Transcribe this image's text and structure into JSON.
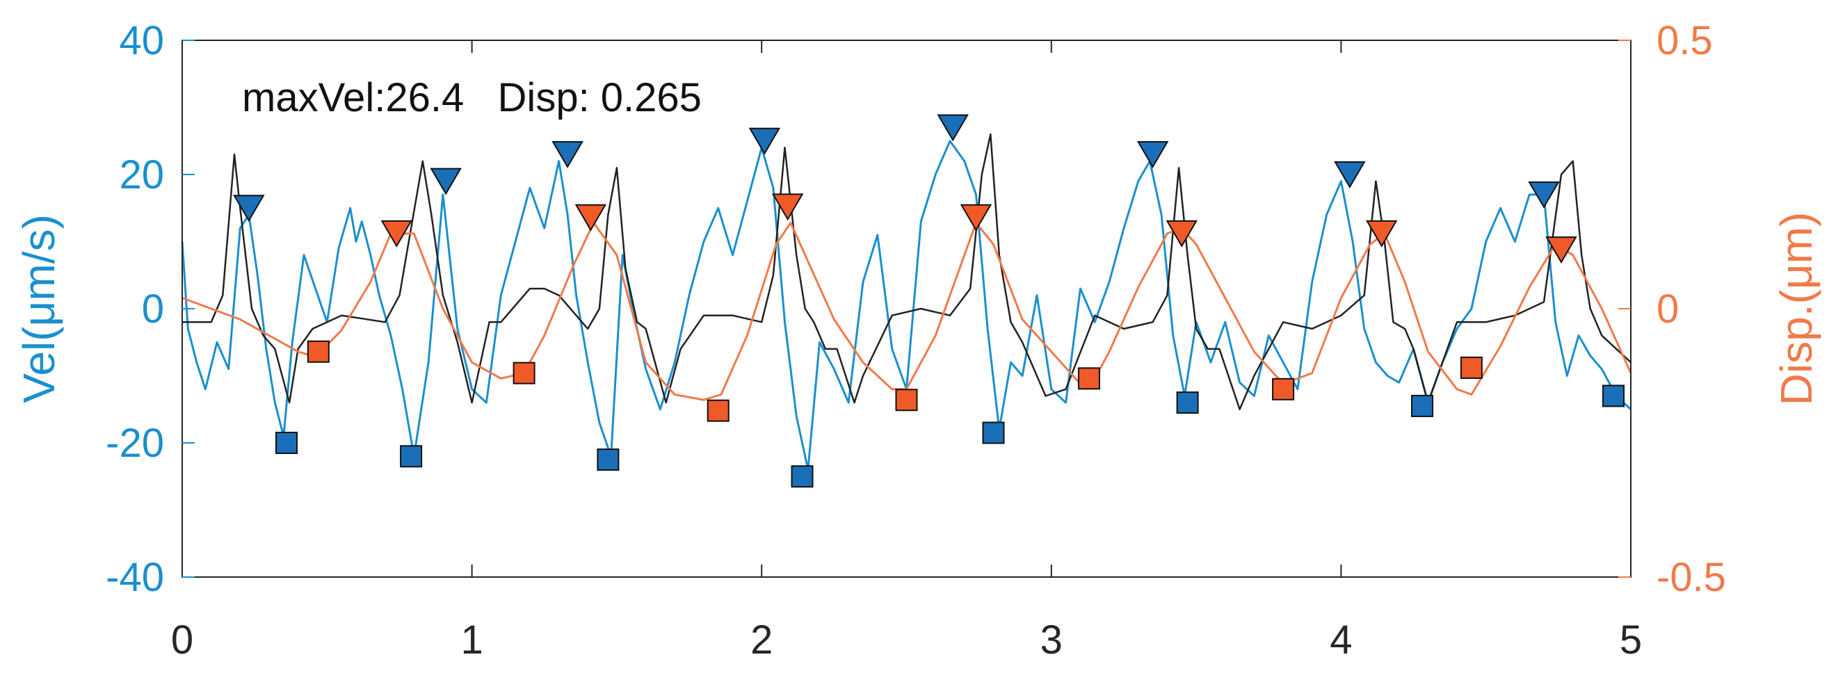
{
  "chart_data": {
    "type": "line",
    "title": "",
    "annotation": "maxVel:26.4   Disp: 0.265",
    "xlabel": "",
    "xlim": [
      0,
      5
    ],
    "x_ticks": [
      "0",
      "1",
      "2",
      "3",
      "4",
      "5"
    ],
    "y_left": {
      "label": "Vel(μm/s)",
      "color": "#1a8fcf",
      "ylim": [
        -40,
        40
      ],
      "ticks": [
        "40",
        "20",
        "0",
        "-20",
        "-40"
      ]
    },
    "y_right": {
      "label": "Disp.(μm)",
      "color": "#f07a4a",
      "ylim": [
        -0.5,
        0.5
      ],
      "ticks": [
        "0.5",
        "0",
        "-0.5"
      ]
    },
    "grid": false,
    "series": [
      {
        "axis": "left",
        "color": "#1a8fcf",
        "x": [
          0,
          0.02,
          0.05,
          0.08,
          0.12,
          0.16,
          0.2,
          0.23,
          0.26,
          0.29,
          0.32,
          0.35,
          0.38,
          0.42,
          0.46,
          0.5,
          0.54,
          0.58,
          0.6,
          0.62,
          0.65,
          0.68,
          0.72,
          0.76,
          0.8,
          0.85,
          0.9,
          0.95,
          1.0,
          1.05,
          1.1,
          1.15,
          1.2,
          1.25,
          1.3,
          1.33,
          1.36,
          1.4,
          1.44,
          1.48,
          1.52,
          1.56,
          1.6,
          1.65,
          1.7,
          1.75,
          1.8,
          1.85,
          1.9,
          1.95,
          2.0,
          2.04,
          2.08,
          2.12,
          2.16,
          2.2,
          2.25,
          2.3,
          2.35,
          2.4,
          2.45,
          2.5,
          2.55,
          2.6,
          2.65,
          2.7,
          2.74,
          2.78,
          2.82,
          2.86,
          2.9,
          2.95,
          3.0,
          3.05,
          3.1,
          3.15,
          3.2,
          3.25,
          3.3,
          3.34,
          3.38,
          3.42,
          3.46,
          3.5,
          3.55,
          3.6,
          3.65,
          3.7,
          3.75,
          3.8,
          3.85,
          3.9,
          3.95,
          4.0,
          4.04,
          4.08,
          4.12,
          4.16,
          4.2,
          4.25,
          4.3,
          4.35,
          4.4,
          4.45,
          4.5,
          4.55,
          4.6,
          4.65,
          4.7,
          4.74,
          4.78,
          4.82,
          4.86,
          4.9,
          4.95,
          5.0
        ],
        "values": [
          10,
          -3,
          -8,
          -12,
          -5,
          -9,
          12,
          14,
          5,
          -6,
          -14,
          -19,
          -5,
          8,
          3,
          -2,
          9,
          15,
          10,
          13,
          8,
          2,
          -4,
          -12,
          -22,
          -8,
          17,
          -3,
          -12,
          -14,
          2,
          10,
          18,
          12,
          22,
          14,
          2,
          -8,
          -17,
          -22,
          8,
          -1,
          -9,
          -15,
          -8,
          2,
          10,
          15,
          8,
          16,
          24,
          18,
          -2,
          -16,
          -24,
          -5,
          -9,
          -14,
          4,
          11,
          -6,
          -12,
          13,
          20,
          25,
          22,
          17,
          -3,
          -18,
          -8,
          -10,
          2,
          -12,
          -14,
          3,
          -2,
          4,
          12,
          19,
          22,
          14,
          -4,
          -13,
          -2,
          -8,
          -2,
          -11,
          -13,
          -4,
          -8,
          -12,
          4,
          14,
          19,
          10,
          -3,
          -8,
          -10,
          -11,
          -6,
          -14,
          -8,
          -3,
          0,
          10,
          15,
          10,
          17,
          17,
          -2,
          -10,
          -4,
          -7,
          -9,
          -13,
          -15
        ]
      },
      {
        "axis": "left",
        "color": "#222222",
        "x": [
          0,
          0.1,
          0.14,
          0.18,
          0.2,
          0.24,
          0.28,
          0.32,
          0.37,
          0.4,
          0.45,
          0.55,
          0.7,
          0.75,
          0.79,
          0.83,
          0.86,
          0.9,
          0.95,
          1.0,
          1.03,
          1.06,
          1.1,
          1.2,
          1.25,
          1.3,
          1.4,
          1.44,
          1.47,
          1.5,
          1.53,
          1.57,
          1.6,
          1.67,
          1.72,
          1.8,
          1.9,
          2.0,
          2.04,
          2.08,
          2.12,
          2.15,
          2.18,
          2.22,
          2.26,
          2.32,
          2.35,
          2.45,
          2.55,
          2.65,
          2.72,
          2.76,
          2.79,
          2.82,
          2.86,
          2.9,
          2.98,
          3.05,
          3.15,
          3.25,
          3.35,
          3.4,
          3.44,
          3.47,
          3.5,
          3.54,
          3.58,
          3.65,
          3.7,
          3.8,
          3.9,
          4.0,
          4.08,
          4.12,
          4.15,
          4.18,
          4.22,
          4.25,
          4.3,
          4.4,
          4.5,
          4.6,
          4.7,
          4.76,
          4.8,
          4.83,
          4.86,
          4.9,
          4.95,
          5.0
        ],
        "values": [
          -2,
          -2,
          2,
          23,
          15,
          0,
          -4,
          -6,
          -14,
          -6,
          -3,
          -1,
          -2,
          2,
          12,
          22,
          14,
          2,
          -5,
          -14,
          -8,
          -2,
          -2,
          3,
          3,
          2,
          -3,
          0,
          14,
          21,
          6,
          -2,
          -3,
          -14,
          -6,
          -1,
          -1,
          -2,
          5,
          24,
          8,
          0,
          -2,
          -6,
          -6,
          -14,
          -10,
          -1,
          0,
          -1,
          3,
          20,
          26,
          8,
          -2,
          -5,
          -13,
          -12,
          -1,
          -3,
          -2,
          2,
          21,
          8,
          -3,
          -6,
          -6,
          -15,
          -10,
          -2,
          -3,
          -1,
          2,
          19,
          10,
          -2,
          -3,
          -6,
          -14,
          -2,
          -2,
          -1,
          1,
          20,
          22,
          8,
          0,
          -4,
          -6,
          -8
        ]
      },
      {
        "axis": "right",
        "color": "#f07a4a",
        "x": [
          0,
          0.1,
          0.2,
          0.3,
          0.4,
          0.46,
          0.55,
          0.65,
          0.72,
          0.8,
          0.9,
          1.0,
          1.1,
          1.18,
          1.25,
          1.35,
          1.42,
          1.5,
          1.6,
          1.7,
          1.8,
          1.86,
          1.95,
          2.05,
          2.1,
          2.15,
          2.25,
          2.35,
          2.45,
          2.5,
          2.6,
          2.7,
          2.74,
          2.8,
          2.9,
          3.0,
          3.1,
          3.14,
          3.2,
          3.3,
          3.4,
          3.45,
          3.5,
          3.6,
          3.7,
          3.8,
          3.9,
          4.0,
          4.1,
          4.15,
          4.22,
          4.3,
          4.4,
          4.45,
          4.55,
          4.65,
          4.74,
          4.8,
          4.9,
          5.0
        ],
        "values": [
          0.02,
          0.0,
          -0.02,
          -0.05,
          -0.08,
          -0.09,
          -0.04,
          0.05,
          0.14,
          0.14,
          0.0,
          -0.1,
          -0.13,
          -0.12,
          -0.05,
          0.08,
          0.16,
          0.1,
          -0.1,
          -0.16,
          -0.17,
          -0.16,
          -0.05,
          0.12,
          0.16,
          0.1,
          -0.02,
          -0.1,
          -0.15,
          -0.15,
          -0.05,
          0.1,
          0.16,
          0.12,
          -0.02,
          -0.08,
          -0.14,
          -0.14,
          -0.08,
          0.04,
          0.14,
          0.15,
          0.12,
          0.02,
          -0.08,
          -0.14,
          -0.12,
          0.02,
          0.12,
          0.14,
          0.05,
          -0.08,
          -0.15,
          -0.16,
          -0.07,
          0.04,
          0.12,
          0.1,
          0.0,
          -0.12
        ]
      }
    ],
    "markers": [
      {
        "axis": "left",
        "shape": "triangle-down",
        "color": "#1a6fb8",
        "points": [
          [
            0.23,
            15
          ],
          [
            0.91,
            19
          ],
          [
            1.33,
            23
          ],
          [
            2.01,
            25
          ],
          [
            2.66,
            27
          ],
          [
            3.35,
            23
          ],
          [
            4.03,
            20
          ],
          [
            4.7,
            17
          ]
        ]
      },
      {
        "axis": "left",
        "shape": "square",
        "color": "#1a6fb8",
        "points": [
          [
            0.36,
            -20
          ],
          [
            0.79,
            -22
          ],
          [
            1.47,
            -22.5
          ],
          [
            2.14,
            -25
          ],
          [
            2.8,
            -18.5
          ],
          [
            3.47,
            -14
          ],
          [
            4.28,
            -14.5
          ],
          [
            4.94,
            -13
          ]
        ]
      },
      {
        "axis": "right",
        "shape": "triangle-down",
        "color": "#f05a28",
        "points": [
          [
            0.74,
            0.14
          ],
          [
            1.41,
            0.17
          ],
          [
            2.09,
            0.19
          ],
          [
            2.74,
            0.17
          ],
          [
            3.45,
            0.14
          ],
          [
            4.14,
            0.14
          ],
          [
            4.76,
            0.11
          ]
        ]
      },
      {
        "axis": "right",
        "shape": "square",
        "color": "#f05a28",
        "points": [
          [
            0.47,
            -0.08
          ],
          [
            1.18,
            -0.12
          ],
          [
            1.85,
            -0.19
          ],
          [
            2.5,
            -0.17
          ],
          [
            3.13,
            -0.13
          ],
          [
            3.8,
            -0.15
          ],
          [
            4.45,
            -0.11
          ]
        ]
      }
    ]
  }
}
